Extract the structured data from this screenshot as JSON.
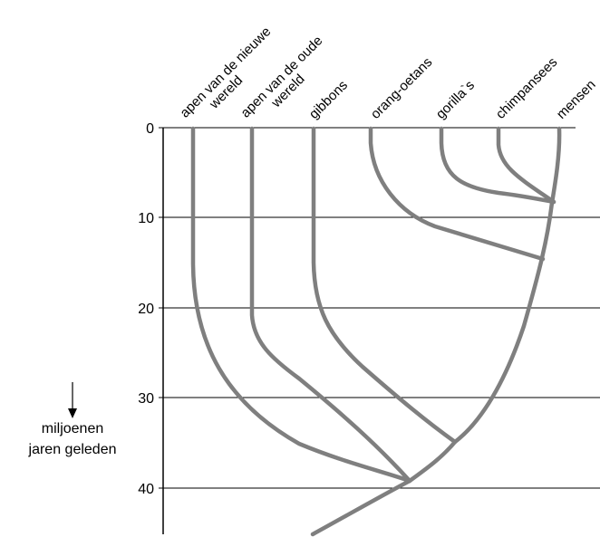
{
  "taxa": [
    {
      "lines": [
        "apen van de nieuwe",
        "wereld"
      ],
      "divergence_mya": 39
    },
    {
      "lines": [
        "apen van de oude",
        "wereld"
      ],
      "divergence_mya": 39
    },
    {
      "lines": [
        "gibbons"
      ],
      "divergence_mya": 35
    },
    {
      "lines": [
        "orang-oetans"
      ],
      "divergence_mya": 14.5
    },
    {
      "lines": [
        "gorilla`s"
      ],
      "divergence_mya": 8.2
    },
    {
      "lines": [
        "chimpansees"
      ],
      "divergence_mya": 8.2
    },
    {
      "lines": [
        "mensen"
      ],
      "divergence_mya": null
    }
  ],
  "axis": {
    "ticks": [
      "0",
      "10",
      "20",
      "30",
      "40"
    ],
    "label_lines": [
      "miljoenen",
      "jaren geleden"
    ],
    "arrow": "down-arrow"
  },
  "colors": {
    "branch": "#7f7f7f",
    "axis": "#000000"
  }
}
